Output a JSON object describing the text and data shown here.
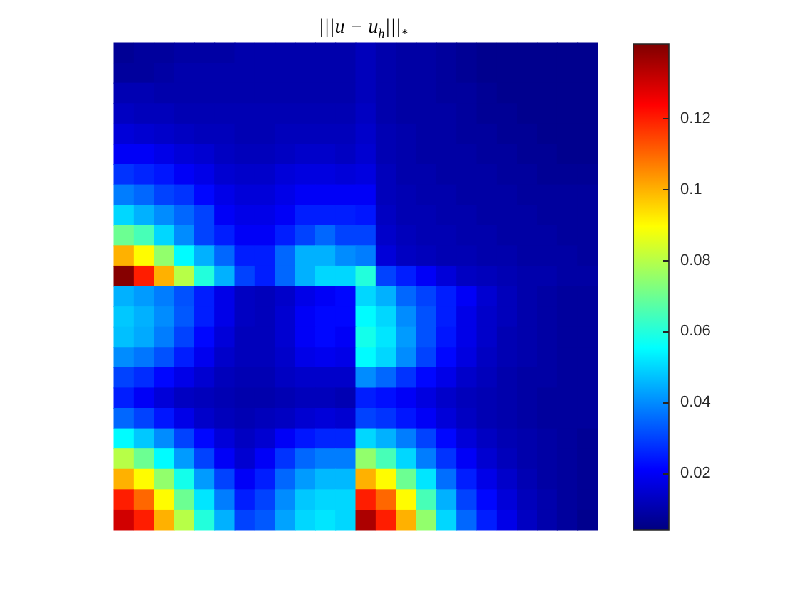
{
  "chart_data": {
    "type": "heatmap",
    "title": "|||u − u$_{h}$|||$_{*}$",
    "categories": [
      null,
      null,
      null,
      null,
      null,
      null,
      null,
      null,
      null,
      null,
      null,
      null,
      null,
      null,
      null,
      null,
      null,
      null,
      null,
      null,
      null,
      null,
      null,
      null
    ],
    "y_categories": [
      null,
      null,
      null,
      null,
      null,
      null,
      null,
      null,
      null,
      null,
      null,
      null,
      null,
      null,
      null,
      null,
      null,
      null,
      null,
      null,
      null,
      null,
      null,
      null
    ],
    "clim": [
      0.004,
      0.141
    ],
    "cticks": [
      0.02,
      0.04,
      0.06,
      0.08,
      0.1,
      0.12
    ],
    "cells": [
      [
        0.007,
        0.008,
        0.008,
        0.009,
        0.009,
        0.009,
        0.01,
        0.01,
        0.01,
        0.01,
        0.01,
        0.01,
        0.012,
        0.01,
        0.009,
        0.009,
        0.008,
        0.007,
        0.006,
        0.006,
        0.006,
        0.006,
        0.006,
        0.006
      ],
      [
        0.008,
        0.008,
        0.009,
        0.01,
        0.01,
        0.01,
        0.01,
        0.01,
        0.01,
        0.01,
        0.01,
        0.01,
        0.012,
        0.01,
        0.009,
        0.009,
        0.008,
        0.007,
        0.006,
        0.006,
        0.006,
        0.006,
        0.006,
        0.006
      ],
      [
        0.011,
        0.011,
        0.01,
        0.01,
        0.01,
        0.01,
        0.01,
        0.01,
        0.01,
        0.01,
        0.01,
        0.01,
        0.012,
        0.01,
        0.009,
        0.009,
        0.008,
        0.008,
        0.007,
        0.006,
        0.006,
        0.006,
        0.006,
        0.006
      ],
      [
        0.013,
        0.012,
        0.012,
        0.011,
        0.011,
        0.011,
        0.011,
        0.011,
        0.011,
        0.011,
        0.011,
        0.011,
        0.013,
        0.01,
        0.009,
        0.009,
        0.009,
        0.008,
        0.007,
        0.007,
        0.006,
        0.006,
        0.006,
        0.006
      ],
      [
        0.016,
        0.015,
        0.014,
        0.013,
        0.012,
        0.012,
        0.011,
        0.011,
        0.012,
        0.012,
        0.012,
        0.012,
        0.014,
        0.011,
        0.01,
        0.009,
        0.009,
        0.008,
        0.008,
        0.007,
        0.007,
        0.006,
        0.006,
        0.006
      ],
      [
        0.02,
        0.02,
        0.018,
        0.016,
        0.015,
        0.013,
        0.012,
        0.012,
        0.013,
        0.014,
        0.014,
        0.013,
        0.015,
        0.011,
        0.01,
        0.009,
        0.009,
        0.009,
        0.008,
        0.008,
        0.007,
        0.007,
        0.006,
        0.006
      ],
      [
        0.028,
        0.026,
        0.024,
        0.02,
        0.018,
        0.015,
        0.014,
        0.014,
        0.016,
        0.017,
        0.017,
        0.016,
        0.017,
        0.012,
        0.01,
        0.01,
        0.009,
        0.009,
        0.009,
        0.008,
        0.008,
        0.007,
        0.007,
        0.007
      ],
      [
        0.038,
        0.035,
        0.03,
        0.028,
        0.022,
        0.018,
        0.016,
        0.016,
        0.018,
        0.02,
        0.02,
        0.02,
        0.02,
        0.012,
        0.011,
        0.01,
        0.01,
        0.009,
        0.009,
        0.009,
        0.008,
        0.008,
        0.008,
        0.008
      ],
      [
        0.05,
        0.045,
        0.04,
        0.035,
        0.03,
        0.02,
        0.018,
        0.018,
        0.02,
        0.025,
        0.025,
        0.025,
        0.024,
        0.013,
        0.011,
        0.011,
        0.01,
        0.01,
        0.009,
        0.009,
        0.009,
        0.008,
        0.008,
        0.008
      ],
      [
        0.07,
        0.065,
        0.05,
        0.04,
        0.03,
        0.025,
        0.02,
        0.02,
        0.025,
        0.03,
        0.035,
        0.03,
        0.03,
        0.014,
        0.012,
        0.011,
        0.011,
        0.01,
        0.01,
        0.009,
        0.009,
        0.009,
        0.008,
        0.008
      ],
      [
        0.1,
        0.09,
        0.075,
        0.055,
        0.045,
        0.035,
        0.025,
        0.025,
        0.035,
        0.045,
        0.045,
        0.04,
        0.038,
        0.016,
        0.013,
        0.012,
        0.011,
        0.011,
        0.01,
        0.01,
        0.009,
        0.009,
        0.009,
        0.008
      ],
      [
        0.14,
        0.12,
        0.1,
        0.08,
        0.06,
        0.045,
        0.03,
        0.025,
        0.035,
        0.045,
        0.05,
        0.05,
        0.06,
        0.03,
        0.025,
        0.02,
        0.016,
        0.013,
        0.012,
        0.011,
        0.01,
        0.01,
        0.009,
        0.009
      ],
      [
        0.045,
        0.042,
        0.038,
        0.032,
        0.025,
        0.018,
        0.013,
        0.012,
        0.014,
        0.018,
        0.02,
        0.022,
        0.05,
        0.045,
        0.035,
        0.03,
        0.025,
        0.02,
        0.015,
        0.012,
        0.01,
        0.009,
        0.008,
        0.008
      ],
      [
        0.048,
        0.045,
        0.04,
        0.033,
        0.025,
        0.018,
        0.013,
        0.012,
        0.015,
        0.02,
        0.022,
        0.022,
        0.055,
        0.05,
        0.04,
        0.032,
        0.025,
        0.018,
        0.014,
        0.012,
        0.01,
        0.009,
        0.008,
        0.008
      ],
      [
        0.047,
        0.044,
        0.038,
        0.03,
        0.022,
        0.016,
        0.012,
        0.012,
        0.015,
        0.02,
        0.022,
        0.02,
        0.058,
        0.052,
        0.042,
        0.032,
        0.024,
        0.018,
        0.014,
        0.011,
        0.01,
        0.009,
        0.008,
        0.008
      ],
      [
        0.04,
        0.037,
        0.032,
        0.025,
        0.019,
        0.014,
        0.012,
        0.012,
        0.014,
        0.018,
        0.019,
        0.018,
        0.055,
        0.05,
        0.04,
        0.03,
        0.022,
        0.017,
        0.013,
        0.011,
        0.01,
        0.009,
        0.008,
        0.008
      ],
      [
        0.03,
        0.027,
        0.022,
        0.018,
        0.015,
        0.012,
        0.011,
        0.011,
        0.013,
        0.014,
        0.014,
        0.014,
        0.04,
        0.035,
        0.028,
        0.022,
        0.018,
        0.014,
        0.012,
        0.01,
        0.009,
        0.009,
        0.008,
        0.008
      ],
      [
        0.025,
        0.02,
        0.016,
        0.013,
        0.012,
        0.011,
        0.01,
        0.01,
        0.011,
        0.012,
        0.012,
        0.011,
        0.025,
        0.023,
        0.02,
        0.017,
        0.014,
        0.012,
        0.011,
        0.01,
        0.009,
        0.008,
        0.008,
        0.008
      ],
      [
        0.035,
        0.03,
        0.024,
        0.018,
        0.014,
        0.012,
        0.011,
        0.012,
        0.013,
        0.015,
        0.016,
        0.015,
        0.03,
        0.028,
        0.024,
        0.02,
        0.016,
        0.013,
        0.011,
        0.01,
        0.009,
        0.008,
        0.008,
        0.008
      ],
      [
        0.055,
        0.048,
        0.04,
        0.03,
        0.022,
        0.016,
        0.013,
        0.015,
        0.02,
        0.024,
        0.026,
        0.026,
        0.05,
        0.045,
        0.038,
        0.03,
        0.022,
        0.016,
        0.013,
        0.011,
        0.01,
        0.009,
        0.008,
        0.007
      ],
      [
        0.08,
        0.07,
        0.055,
        0.042,
        0.03,
        0.02,
        0.015,
        0.02,
        0.028,
        0.035,
        0.038,
        0.038,
        0.075,
        0.065,
        0.05,
        0.038,
        0.028,
        0.02,
        0.015,
        0.012,
        0.01,
        0.009,
        0.008,
        0.007
      ],
      [
        0.1,
        0.09,
        0.075,
        0.058,
        0.042,
        0.03,
        0.02,
        0.025,
        0.035,
        0.042,
        0.046,
        0.046,
        0.1,
        0.09,
        0.07,
        0.052,
        0.036,
        0.025,
        0.018,
        0.014,
        0.011,
        0.009,
        0.008,
        0.007
      ],
      [
        0.12,
        0.11,
        0.09,
        0.07,
        0.052,
        0.038,
        0.025,
        0.03,
        0.04,
        0.048,
        0.05,
        0.05,
        0.12,
        0.11,
        0.09,
        0.065,
        0.045,
        0.03,
        0.022,
        0.016,
        0.012,
        0.01,
        0.008,
        0.007
      ],
      [
        0.13,
        0.12,
        0.1,
        0.08,
        0.06,
        0.045,
        0.03,
        0.033,
        0.043,
        0.05,
        0.052,
        0.05,
        0.135,
        0.12,
        0.1,
        0.075,
        0.05,
        0.035,
        0.025,
        0.018,
        0.013,
        0.01,
        0.008,
        0.006
      ]
    ]
  }
}
